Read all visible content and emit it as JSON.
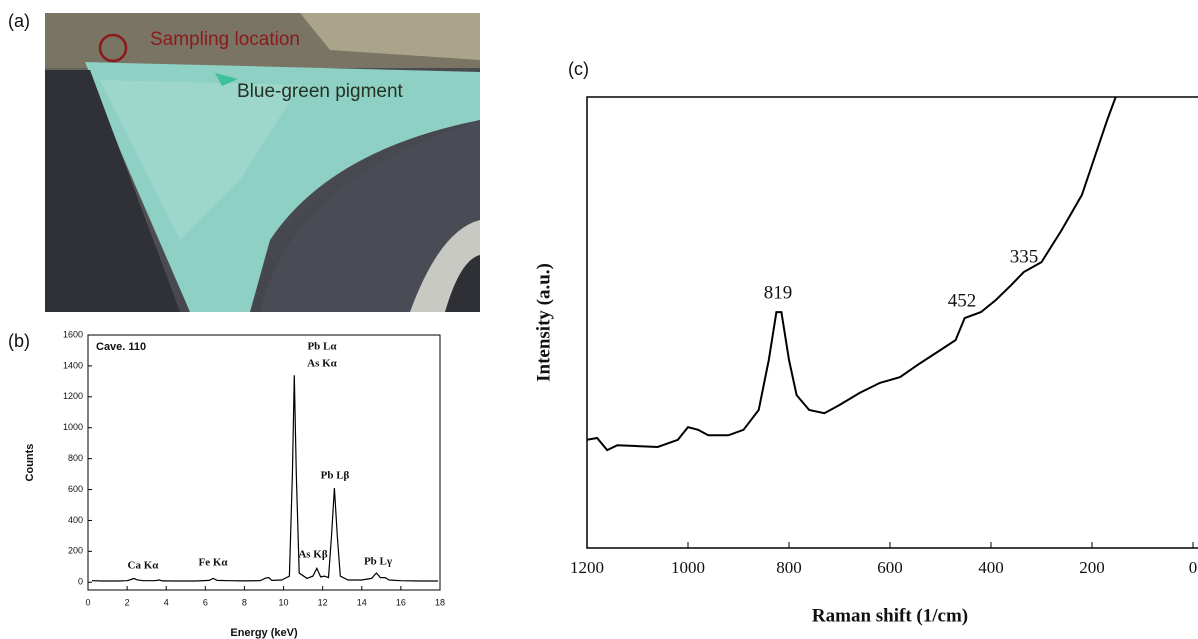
{
  "panel_labels": [
    "(a)",
    "(b)",
    "(c)"
  ],
  "photo": {
    "annotations": [
      "Sampling location",
      "Blue-green pigment"
    ]
  },
  "chart_data": [
    {
      "type": "line",
      "title": "Cave. 110",
      "x_label": "Energy (keV)",
      "y_label": "Counts",
      "color": "#000000",
      "x": [
        0.2,
        0.8,
        1.5,
        2.0,
        2.2,
        2.35,
        2.5,
        2.8,
        3.4,
        3.65,
        3.8,
        4.5,
        5.5,
        6.2,
        6.4,
        6.6,
        7.2,
        8.0,
        8.8,
        9.1,
        9.25,
        9.4,
        9.9,
        10.3,
        10.45,
        10.55,
        10.65,
        10.8,
        11.2,
        11.5,
        11.7,
        11.9,
        12.1,
        12.3,
        12.45,
        12.6,
        12.75,
        12.9,
        13.3,
        14.0,
        14.5,
        14.75,
        14.95,
        15.2,
        15.4,
        16.0,
        17.0,
        17.9
      ],
      "values": [
        10,
        8,
        8,
        10,
        18,
        25,
        16,
        10,
        10,
        15,
        9,
        8,
        8,
        12,
        25,
        12,
        10,
        9,
        10,
        28,
        30,
        12,
        15,
        40,
        700,
        1340,
        700,
        60,
        25,
        40,
        90,
        35,
        40,
        30,
        300,
        610,
        300,
        40,
        15,
        15,
        25,
        60,
        30,
        30,
        15,
        10,
        8,
        8
      ],
      "xlim": [
        0,
        18
      ],
      "xticks": [
        0,
        2,
        4,
        6,
        8,
        10,
        12,
        14,
        16,
        18
      ],
      "ylim": [
        -50,
        1600
      ],
      "yticks": [
        0,
        200,
        400,
        600,
        800,
        1000,
        1200,
        1400,
        1600
      ],
      "annotations": [
        "Ca Kα",
        "Fe Kα",
        "Pb Lα",
        "As Kα",
        "As Kβ",
        "Pb Lβ",
        "Pb Lγ"
      ]
    },
    {
      "type": "line",
      "x_label": "Raman shift (1/cm)",
      "y_label": "Intensity (a.u.)",
      "color": "#000000",
      "x": [
        1200,
        1180,
        1160,
        1140,
        1100,
        1060,
        1020,
        1000,
        980,
        960,
        920,
        890,
        860,
        840,
        825,
        815,
        800,
        785,
        760,
        730,
        700,
        660,
        620,
        580,
        540,
        500,
        470,
        452,
        420,
        390,
        360,
        335,
        300,
        260,
        220,
        190,
        170,
        153
      ],
      "values": [
        24,
        24.4,
        21.7,
        22.8,
        22.6,
        22.4,
        24,
        26.8,
        26.2,
        25,
        25,
        26.2,
        30.6,
        41.7,
        52.3,
        52.3,
        41.7,
        33.9,
        30.6,
        29.9,
        31.7,
        34.4,
        36.6,
        37.9,
        41,
        43.9,
        46.1,
        51,
        52.3,
        55,
        58.3,
        61.2,
        63.4,
        70.5,
        78.3,
        88.2,
        94.9,
        100
      ],
      "xlim": [
        1200,
        0
      ],
      "xticks": [
        1200,
        1000,
        800,
        600,
        400,
        200,
        0
      ],
      "ylim": [
        0,
        100
      ],
      "annotations": [
        "819",
        "452",
        "335"
      ]
    }
  ]
}
